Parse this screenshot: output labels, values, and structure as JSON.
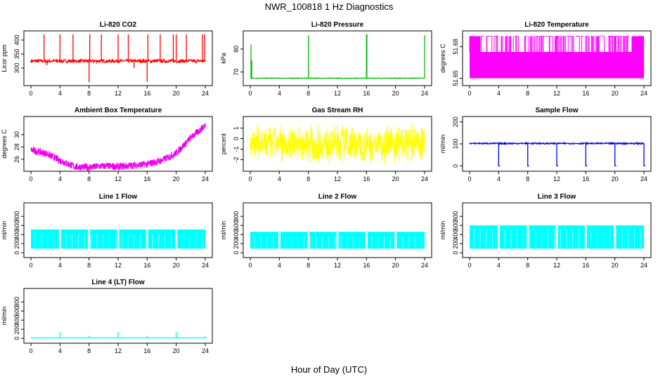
{
  "figure": {
    "title": "NWR_100818  1 Hz Diagnostics",
    "xlabel": "Hour of Day (UTC)"
  },
  "chart_data": [
    {
      "type": "line",
      "title": "Li-820 CO2",
      "ylabel": "Licor ppm",
      "x_ticks": [
        0,
        4,
        8,
        12,
        16,
        20,
        24
      ],
      "y_ticks": [
        300,
        350,
        400
      ],
      "xlim": [
        0,
        24
      ],
      "ylim": [
        245,
        425
      ],
      "color": "#ff0000",
      "baseline": 325,
      "noise": 6,
      "spikes": [
        [
          1.8,
          420
        ],
        [
          2.2,
          310
        ],
        [
          4,
          420
        ],
        [
          5.8,
          420
        ],
        [
          8,
          250
        ],
        [
          8.1,
          420
        ],
        [
          9.7,
          420
        ],
        [
          12,
          420
        ],
        [
          13.4,
          420
        ],
        [
          14.2,
          300
        ],
        [
          16,
          252
        ],
        [
          16.1,
          420
        ],
        [
          17.8,
          420
        ],
        [
          19.6,
          420
        ],
        [
          20,
          420
        ],
        [
          21.4,
          420
        ],
        [
          23.6,
          420
        ],
        [
          23.9,
          420
        ]
      ]
    },
    {
      "type": "line",
      "title": "Li-820 Pressure",
      "ylabel": "kPa",
      "x_ticks": [
        0,
        4,
        8,
        12,
        16,
        20,
        24
      ],
      "y_ticks": [
        70,
        80
      ],
      "xlim": [
        0,
        24
      ],
      "ylim": [
        65,
        87
      ],
      "color": "#00bb00",
      "baseline": 67.3,
      "noise": 0.15,
      "spikes": [
        [
          0.1,
          82
        ],
        [
          0.2,
          75
        ],
        [
          8,
          86
        ],
        [
          16,
          86.5
        ],
        [
          16.05,
          86.5
        ],
        [
          24,
          86
        ]
      ]
    },
    {
      "type": "area",
      "title": "Li-820 Temperature",
      "ylabel": "degrees C",
      "x_ticks": [
        0,
        4,
        8,
        12,
        16,
        20,
        24
      ],
      "y_ticks": [
        51.65,
        51.68
      ],
      "xlim": [
        0,
        24
      ],
      "ylim": [
        51.645,
        51.693
      ],
      "color": "#ff00ff",
      "band": [
        51.65,
        51.675
      ],
      "spike_top": 51.69
    },
    {
      "type": "line",
      "title": "Ambient Box Temperature",
      "ylabel": "degrees C",
      "x_ticks": [
        0,
        4,
        8,
        12,
        16,
        20,
        24
      ],
      "y_ticks": [
        26,
        28,
        30
      ],
      "xlim": [
        0,
        24
      ],
      "ylim": [
        24.4,
        32.6
      ],
      "color": "#ee00ee",
      "curve": [
        [
          0,
          27.5
        ],
        [
          2,
          27
        ],
        [
          4,
          25.8
        ],
        [
          6,
          24.8
        ],
        [
          8,
          24.7
        ],
        [
          10,
          24.9
        ],
        [
          12,
          24.8
        ],
        [
          14,
          25
        ],
        [
          16,
          25.2
        ],
        [
          18,
          25.8
        ],
        [
          20,
          27
        ],
        [
          22,
          29.5
        ],
        [
          24,
          31.5
        ]
      ],
      "noise": 0.6
    },
    {
      "type": "line",
      "title": "Gas Stream RH",
      "ylabel": "percent",
      "x_ticks": [
        0,
        4,
        8,
        12,
        16,
        20,
        24
      ],
      "y_ticks": [
        -2,
        -1,
        0,
        1
      ],
      "xlim": [
        0,
        24
      ],
      "ylim": [
        -2.9,
        1.9
      ],
      "color": "#ffff00",
      "band": [
        -2.3,
        1.3
      ]
    },
    {
      "type": "line",
      "title": "Sample Flow",
      "ylabel": "ml/min",
      "x_ticks": [
        0,
        4,
        8,
        12,
        16,
        20,
        24
      ],
      "y_ticks": [
        0,
        100,
        200
      ],
      "xlim": [
        0,
        24
      ],
      "ylim": [
        -15,
        215
      ],
      "color": "#0000ee",
      "baseline": 102,
      "noise": 3,
      "drops": [
        4,
        8,
        12,
        16,
        20,
        24
      ]
    },
    {
      "type": "area",
      "title": "Line 1 Flow",
      "ylabel": "ml/min",
      "x_ticks": [
        0,
        4,
        8,
        12,
        16,
        20,
        24
      ],
      "y_ticks": [
        0,
        200,
        400,
        600,
        800
      ],
      "xlim": [
        0,
        24
      ],
      "ylim": [
        -60,
        1050
      ],
      "color": "#00ffff",
      "band": [
        90,
        510
      ],
      "gaps": [
        4,
        8,
        12,
        16,
        20,
        24
      ]
    },
    {
      "type": "area",
      "title": "Line 2 Flow",
      "ylabel": "ml/min",
      "x_ticks": [
        0,
        4,
        8,
        12,
        16,
        20,
        24
      ],
      "y_ticks": [
        0,
        200,
        400,
        600,
        800
      ],
      "xlim": [
        0,
        24
      ],
      "ylim": [
        -60,
        1050
      ],
      "color": "#00ffff",
      "band": [
        90,
        460
      ],
      "gaps": [
        4,
        8,
        12,
        16,
        20,
        24
      ]
    },
    {
      "type": "area",
      "title": "Line 3 Flow",
      "ylabel": "ml/min",
      "x_ticks": [
        0,
        4,
        8,
        12,
        16,
        20,
        24
      ],
      "y_ticks": [
        0,
        200,
        400,
        600,
        800
      ],
      "xlim": [
        0,
        24
      ],
      "ylim": [
        -60,
        1050
      ],
      "color": "#00ffff",
      "band": [
        90,
        600
      ],
      "gaps": [
        4,
        8,
        12,
        16,
        20,
        24
      ]
    },
    {
      "type": "line",
      "title": "Line 4 (LT) Flow",
      "ylabel": "ml/min",
      "x_ticks": [
        0,
        4,
        8,
        12,
        16,
        20,
        24
      ],
      "y_ticks": [
        0,
        200,
        400,
        600,
        800
      ],
      "xlim": [
        0,
        24
      ],
      "ylim": [
        -60,
        1050
      ],
      "color": "#00ffff",
      "baseline": 10,
      "noise": 3,
      "spikes": [
        [
          4,
          140
        ],
        [
          8,
          60
        ],
        [
          12,
          140
        ],
        [
          16,
          60
        ],
        [
          20,
          150
        ],
        [
          24,
          60
        ]
      ]
    }
  ]
}
